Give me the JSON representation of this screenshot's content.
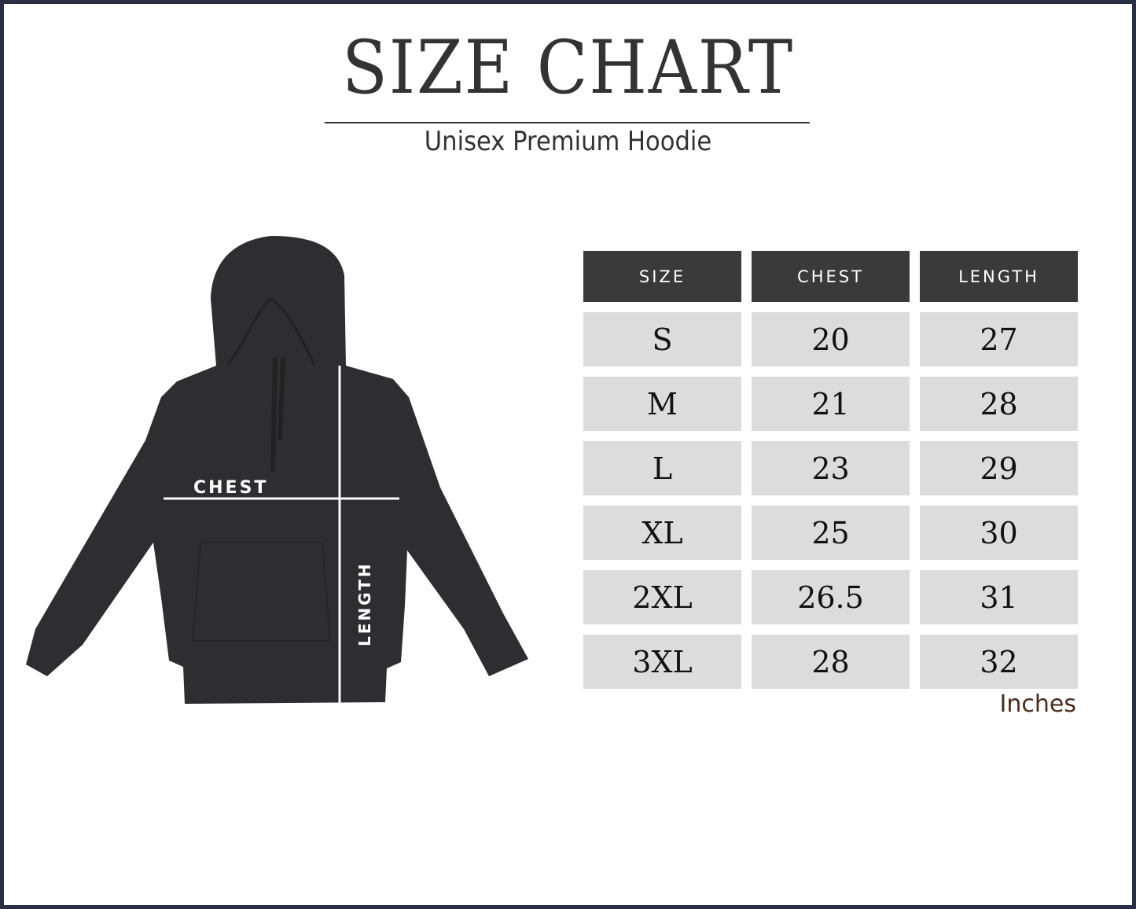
{
  "title": "SIZE CHART",
  "subtitle": "Unisex Premium Hoodie",
  "diagram": {
    "chest_label": "CHEST",
    "length_label": "LENGTH"
  },
  "table": {
    "headers": [
      "SIZE",
      "CHEST",
      "LENGTH"
    ],
    "rows": [
      [
        "S",
        "20",
        "27"
      ],
      [
        "M",
        "21",
        "28"
      ],
      [
        "L",
        "23",
        "29"
      ],
      [
        "XL",
        "25",
        "30"
      ],
      [
        "2XL",
        "26.5",
        "31"
      ],
      [
        "3XL",
        "28",
        "32"
      ]
    ],
    "unit": "Inches"
  },
  "colors": {
    "border": "#2b2f45",
    "header_bg": "#3a3a3a",
    "cell_bg": "#dcdcdc",
    "hoodie": "#2e2e30"
  }
}
